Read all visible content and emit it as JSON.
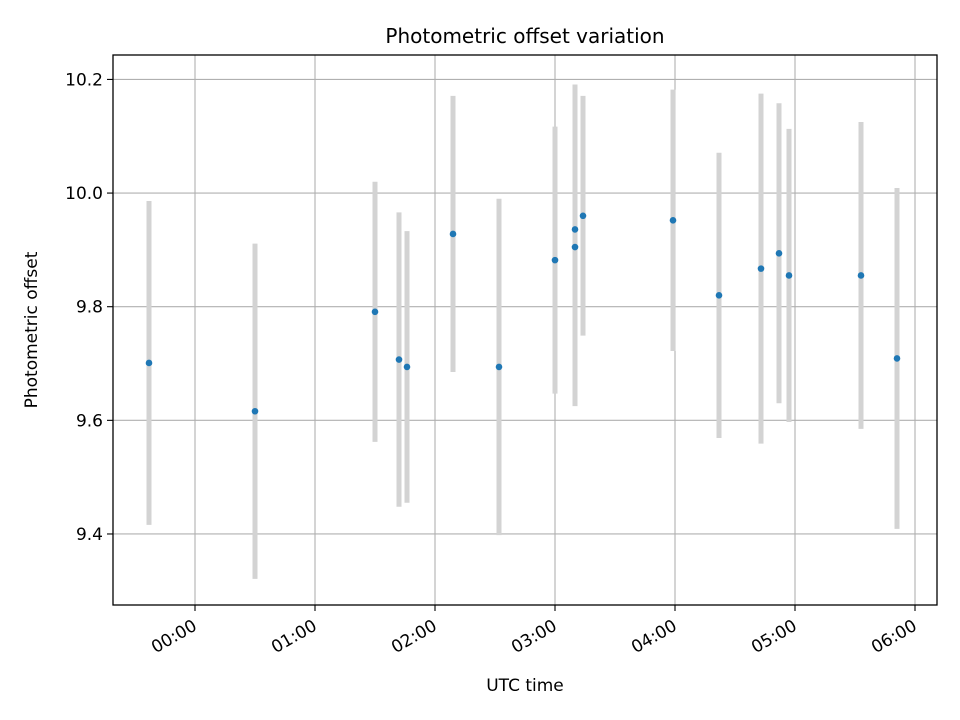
{
  "chart_data": {
    "type": "scatter",
    "title": "Photometric offset variation",
    "xlabel": "UTC time",
    "ylabel": "Photometric offset",
    "xlim": [
      "23:19",
      "06:11"
    ],
    "ylim": [
      9.275,
      10.243
    ],
    "grid": true,
    "x_ticks": [
      "00:00",
      "01:00",
      "02:00",
      "03:00",
      "04:00",
      "05:00",
      "06:00"
    ],
    "y_ticks": [
      "9.4",
      "9.6",
      "9.8",
      "10.0",
      "10.2"
    ],
    "colors": {
      "point": "#1f77b4",
      "errorbar": "#d3d3d3",
      "grid": "#b0b0b0"
    },
    "series": [
      {
        "points": [
          {
            "x": "23:37",
            "y": 9.701,
            "err": 0.285
          },
          {
            "x": "00:30",
            "y": 9.616,
            "err": 0.295
          },
          {
            "x": "01:30",
            "y": 9.791,
            "err": 0.229
          },
          {
            "x": "01:42",
            "y": 9.707,
            "err": 0.259
          },
          {
            "x": "01:46",
            "y": 9.694,
            "err": 0.239
          },
          {
            "x": "02:09",
            "y": 9.928,
            "err": 0.243
          },
          {
            "x": "02:32",
            "y": 9.694,
            "err": 0.296
          },
          {
            "x": "03:00",
            "y": 9.882,
            "err": 0.235
          },
          {
            "x": "03:10",
            "y": 9.905,
            "err": 0.28
          },
          {
            "x": "03:10",
            "y": 9.936,
            "err": 0.255
          },
          {
            "x": "03:14",
            "y": 9.96,
            "err": 0.211
          },
          {
            "x": "03:59",
            "y": 9.952,
            "err": 0.23
          },
          {
            "x": "04:22",
            "y": 9.82,
            "err": 0.251
          },
          {
            "x": "04:43",
            "y": 9.867,
            "err": 0.308
          },
          {
            "x": "04:52",
            "y": 9.894,
            "err": 0.264
          },
          {
            "x": "04:57",
            "y": 9.855,
            "err": 0.258
          },
          {
            "x": "05:33",
            "y": 9.855,
            "err": 0.27
          },
          {
            "x": "05:51",
            "y": 9.709,
            "err": 0.3
          }
        ]
      }
    ]
  }
}
